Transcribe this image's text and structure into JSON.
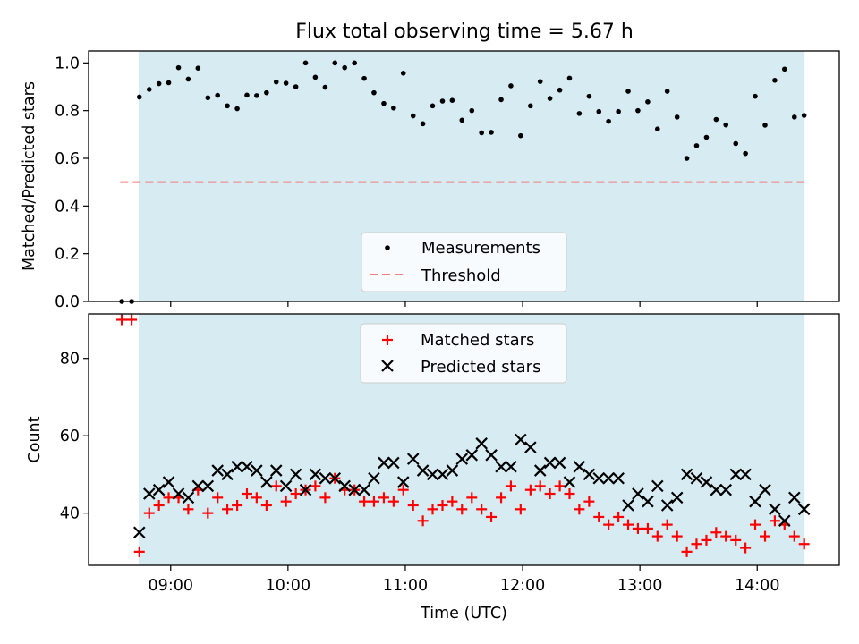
{
  "chart_data": [
    {
      "type": "scatter",
      "title": "Flux total observing time = 5.67 h",
      "ylabel": "Matched/Predicted stars",
      "xlabel": "",
      "x_unit": "hours UTC",
      "xlim": [
        8.3,
        14.7
      ],
      "ylim": [
        0,
        1.05
      ],
      "yticks": [
        0.0,
        0.2,
        0.4,
        0.6,
        0.8,
        1.0
      ],
      "ytick_labels": [
        "0.0",
        "0.2",
        "0.4",
        "0.6",
        "0.8",
        "1.0"
      ],
      "shaded_interval": [
        8.733,
        14.4
      ],
      "threshold": {
        "value": 0.5,
        "x_range": [
          8.57,
          14.4
        ],
        "color": "#f08080"
      },
      "legend": {
        "position": "lower-center",
        "entries": [
          "Measurements",
          "Threshold"
        ]
      },
      "series": [
        {
          "name": "Measurements",
          "color": "#000000",
          "x": [
            8.583,
            8.667,
            8.733,
            8.817,
            8.9,
            8.983,
            9.067,
            9.15,
            9.233,
            9.317,
            9.4,
            9.483,
            9.567,
            9.65,
            9.733,
            9.817,
            9.9,
            9.983,
            10.067,
            10.15,
            10.233,
            10.317,
            10.4,
            10.483,
            10.567,
            10.65,
            10.733,
            10.817,
            10.9,
            10.983,
            11.067,
            11.15,
            11.233,
            11.317,
            11.4,
            11.483,
            11.567,
            11.65,
            11.733,
            11.817,
            11.9,
            11.983,
            12.067,
            12.15,
            12.233,
            12.317,
            12.4,
            12.483,
            12.567,
            12.65,
            12.733,
            12.817,
            12.9,
            12.983,
            13.067,
            13.15,
            13.233,
            13.317,
            13.4,
            13.483,
            13.567,
            13.65,
            13.733,
            13.817,
            13.9,
            13.983,
            14.067,
            14.15,
            14.233,
            14.317,
            14.4
          ],
          "y": [
            0.0,
            0.0,
            0.857,
            0.889,
            0.913,
            0.917,
            0.98,
            0.932,
            0.978,
            0.854,
            0.864,
            0.82,
            0.808,
            0.865,
            0.863,
            0.875,
            0.92,
            0.915,
            0.9,
            1.0,
            0.94,
            0.898,
            1.0,
            0.98,
            1.0,
            0.935,
            0.875,
            0.83,
            0.811,
            0.957,
            0.778,
            0.745,
            0.82,
            0.84,
            0.843,
            0.76,
            0.8,
            0.707,
            0.709,
            0.846,
            0.904,
            0.695,
            0.82,
            0.922,
            0.851,
            0.886,
            0.936,
            0.788,
            0.86,
            0.796,
            0.755,
            0.796,
            0.881,
            0.8,
            0.837,
            0.723,
            0.881,
            0.773,
            0.6,
            0.653,
            0.688,
            0.763,
            0.74,
            0.662,
            0.62,
            0.86,
            0.739,
            0.927,
            0.974,
            0.773,
            0.78
          ]
        }
      ]
    },
    {
      "type": "scatter",
      "title": "",
      "xlabel": "Time (UTC)",
      "ylabel": "Count",
      "x_unit": "hours UTC",
      "xlim": [
        8.3,
        14.7
      ],
      "ylim": [
        26.5,
        91.5
      ],
      "xticks": [
        9,
        10,
        11,
        12,
        13,
        14
      ],
      "xtick_labels": [
        "09:00",
        "10:00",
        "11:00",
        "12:00",
        "13:00",
        "14:00"
      ],
      "yticks": [
        40,
        60,
        80
      ],
      "ytick_labels": [
        "40",
        "60",
        "80"
      ],
      "shaded_interval": [
        8.733,
        14.4
      ],
      "legend": {
        "position": "upper-center",
        "entries": [
          "Matched stars",
          "Predicted stars"
        ]
      },
      "series": [
        {
          "name": "Matched stars",
          "color": "#ff0000",
          "marker": "+",
          "x": [
            8.583,
            8.667,
            8.733,
            8.817,
            8.9,
            8.983,
            9.067,
            9.15,
            9.233,
            9.317,
            9.4,
            9.483,
            9.567,
            9.65,
            9.733,
            9.817,
            9.9,
            9.983,
            10.067,
            10.15,
            10.233,
            10.317,
            10.4,
            10.483,
            10.567,
            10.65,
            10.733,
            10.817,
            10.9,
            10.983,
            11.067,
            11.15,
            11.233,
            11.317,
            11.4,
            11.483,
            11.567,
            11.65,
            11.733,
            11.817,
            11.9,
            11.983,
            12.067,
            12.15,
            12.233,
            12.317,
            12.4,
            12.483,
            12.567,
            12.65,
            12.733,
            12.817,
            12.9,
            12.983,
            13.067,
            13.15,
            13.233,
            13.317,
            13.4,
            13.483,
            13.567,
            13.65,
            13.733,
            13.817,
            13.9,
            13.983,
            14.067,
            14.15,
            14.233,
            14.317,
            14.4
          ],
          "y": [
            90,
            90,
            30,
            40,
            42,
            44,
            44,
            41,
            46,
            40,
            44,
            41,
            42,
            45,
            44,
            42,
            47,
            43,
            45,
            46,
            47,
            44,
            49,
            46,
            46,
            43,
            43,
            44,
            43,
            46,
            42,
            38,
            41,
            42,
            43,
            41,
            44,
            41,
            39,
            44,
            47,
            41,
            46,
            47,
            45,
            47,
            45,
            41,
            43,
            39,
            37,
            39,
            37,
            36,
            36,
            34,
            37,
            34,
            30,
            32,
            33,
            35,
            34,
            33,
            31,
            37,
            34,
            38,
            37,
            34,
            32
          ]
        },
        {
          "name": "Predicted stars",
          "color": "#000000",
          "marker": "x",
          "x": [
            8.733,
            8.817,
            8.9,
            8.983,
            9.067,
            9.15,
            9.233,
            9.317,
            9.4,
            9.483,
            9.567,
            9.65,
            9.733,
            9.817,
            9.9,
            9.983,
            10.067,
            10.15,
            10.233,
            10.317,
            10.4,
            10.483,
            10.567,
            10.65,
            10.733,
            10.817,
            10.9,
            10.983,
            11.067,
            11.15,
            11.233,
            11.317,
            11.4,
            11.483,
            11.567,
            11.65,
            11.733,
            11.817,
            11.9,
            11.983,
            12.067,
            12.15,
            12.233,
            12.317,
            12.4,
            12.483,
            12.567,
            12.65,
            12.733,
            12.817,
            12.9,
            12.983,
            13.067,
            13.15,
            13.233,
            13.317,
            13.4,
            13.483,
            13.567,
            13.65,
            13.733,
            13.817,
            13.9,
            13.983,
            14.067,
            14.15,
            14.233,
            14.317,
            14.4
          ],
          "y": [
            35,
            45,
            46,
            48,
            45,
            44,
            47,
            47,
            51,
            50,
            52,
            52,
            51,
            48,
            51,
            47,
            50,
            46,
            50,
            49,
            49,
            47,
            46,
            46,
            49,
            53,
            53,
            48,
            54,
            51,
            50,
            50,
            51,
            54,
            55,
            58,
            55,
            52,
            52,
            59,
            57,
            51,
            53,
            53,
            48,
            52,
            50,
            49,
            49,
            49,
            42,
            45,
            43,
            47,
            42,
            44,
            50,
            49,
            48,
            46,
            46,
            50,
            50,
            43,
            46,
            41,
            38,
            44,
            41
          ]
        }
      ]
    }
  ]
}
